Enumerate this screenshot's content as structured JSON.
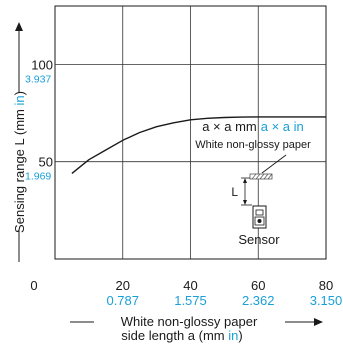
{
  "colors": {
    "ink": "#1a1a1a",
    "accent": "#1aa0d8",
    "grid": "#333333",
    "hatch": "#555555"
  },
  "chart_data": {
    "type": "line",
    "xlim": [
      0,
      80
    ],
    "ylim": [
      0,
      130
    ],
    "grid": true,
    "x_ticks": [
      {
        "value": 0,
        "label": "0",
        "sub": ""
      },
      {
        "value": 20,
        "label": "20",
        "sub": "0.787"
      },
      {
        "value": 40,
        "label": "40",
        "sub": "1.575"
      },
      {
        "value": 60,
        "label": "60",
        "sub": "2.362"
      },
      {
        "value": 80,
        "label": "80",
        "sub": "3.150"
      }
    ],
    "y_ticks": [
      {
        "value": 50,
        "label": "50",
        "sub": "1.969"
      },
      {
        "value": 100,
        "label": "100",
        "sub": "3.937"
      }
    ],
    "ylabel_main": "Sensing range L (mm ",
    "ylabel_unit": "in",
    "ylabel_close": ")",
    "xlabel_line1": "White non-glossy paper",
    "xlabel_line2_main": "side length a (mm ",
    "xlabel_line2_unit": "in",
    "xlabel_line2_close": ")",
    "series": [
      {
        "x": [
          5,
          10,
          15,
          20,
          25,
          30,
          35,
          40,
          45,
          50,
          55,
          60,
          65,
          70,
          75,
          80
        ],
        "y": [
          44,
          51,
          56,
          61,
          65,
          68,
          70,
          71.5,
          72.3,
          72.7,
          72.9,
          73,
          73,
          73,
          73,
          73
        ]
      }
    ],
    "annotation": {
      "formula_main": "a × a mm",
      "formula_unit": "a × a in",
      "caption": "White non-glossy paper",
      "dim_label": "L",
      "sensor_label": "Sensor"
    }
  }
}
